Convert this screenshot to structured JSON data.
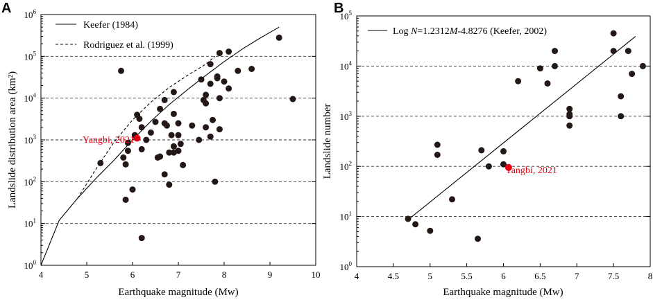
{
  "chart_data": [
    {
      "panel": "A",
      "type": "scatter",
      "xlabel": "Earthquake magnitude (Mw)",
      "ylabel": "Landslide distribution area  (km²)",
      "xlim": [
        4,
        10
      ],
      "xticks": [
        4,
        5,
        6,
        7,
        8,
        9,
        10
      ],
      "ylog": true,
      "ylim_exp": [
        0,
        6
      ],
      "ytick_labels": [
        "10^0",
        "10^1",
        "10^2",
        "10^3",
        "10^4",
        "10^5",
        "10^6"
      ],
      "grid_exps": [
        1,
        2,
        3,
        4,
        5
      ],
      "legend": [
        {
          "label": "Keefer (1984)",
          "style": "solid"
        },
        {
          "label": "Rodriguez et al. (1999)",
          "style": "dashed"
        }
      ],
      "curves": [
        {
          "name": "Keefer (1984)",
          "style": "solid",
          "points": [
            [
              4.0,
              1.0
            ],
            [
              4.4,
              12
            ],
            [
              4.8,
              40
            ],
            [
              5.2,
              120
            ],
            [
              5.6,
              330
            ],
            [
              6.0,
              1000
            ],
            [
              6.4,
              2800
            ],
            [
              6.8,
              7000
            ],
            [
              7.2,
              16000
            ],
            [
              7.6,
              35000
            ],
            [
              8.0,
              75000
            ],
            [
              8.4,
              150000
            ],
            [
              8.8,
              280000
            ],
            [
              9.2,
              500000
            ]
          ]
        },
        {
          "name": "Rodriguez et al. (1999)",
          "style": "dashed",
          "points": [
            [
              4.8,
              40
            ],
            [
              5.2,
              200
            ],
            [
              5.6,
              900
            ],
            [
              6.0,
              3000
            ],
            [
              6.4,
              8000
            ],
            [
              6.8,
              18000
            ],
            [
              7.2,
              35000
            ],
            [
              7.6,
              65000
            ],
            [
              7.8,
              100000
            ]
          ]
        }
      ],
      "series": [
        {
          "name": "Earthquakes",
          "color": "#231815",
          "points": [
            [
              5.3,
              280
            ],
            [
              5.75,
              45000
            ],
            [
              5.8,
              380
            ],
            [
              5.85,
              260
            ],
            [
              5.85,
              37
            ],
            [
              5.9,
              850
            ],
            [
              5.9,
              550
            ],
            [
              6.0,
              65
            ],
            [
              6.05,
              1300
            ],
            [
              6.1,
              4000
            ],
            [
              6.15,
              3200
            ],
            [
              6.2,
              2000
            ],
            [
              6.2,
              600
            ],
            [
              6.2,
              4.5
            ],
            [
              6.3,
              1000
            ],
            [
              6.4,
              1500
            ],
            [
              6.5,
              2700
            ],
            [
              6.55,
              380
            ],
            [
              6.6,
              5500
            ],
            [
              6.6,
              400
            ],
            [
              6.7,
              9000
            ],
            [
              6.7,
              2500
            ],
            [
              6.7,
              150
            ],
            [
              6.75,
              2200
            ],
            [
              6.8,
              85
            ],
            [
              6.8,
              500
            ],
            [
              6.85,
              1300
            ],
            [
              6.9,
              14000
            ],
            [
              6.9,
              4200
            ],
            [
              6.9,
              700
            ],
            [
              6.9,
              500
            ],
            [
              7.0,
              2500
            ],
            [
              7.0,
              1300
            ],
            [
              7.0,
              550
            ],
            [
              7.05,
              800
            ],
            [
              7.1,
              250
            ],
            [
              7.3,
              2200
            ],
            [
              7.45,
              1000
            ],
            [
              7.5,
              28000
            ],
            [
              7.55,
              9000
            ],
            [
              7.6,
              12000
            ],
            [
              7.6,
              7500
            ],
            [
              7.6,
              2000
            ],
            [
              7.7,
              65000
            ],
            [
              7.7,
              22000
            ],
            [
              7.7,
              1200
            ],
            [
              7.75,
              3000
            ],
            [
              7.8,
              100
            ],
            [
              7.85,
              30000
            ],
            [
              7.85,
              33000
            ],
            [
              7.9,
              120000
            ],
            [
              7.9,
              10000
            ],
            [
              7.9,
              1800
            ],
            [
              8.0,
              25000
            ],
            [
              8.1,
              130000
            ],
            [
              8.1,
              17000
            ],
            [
              8.3,
              45000
            ],
            [
              8.6,
              50000
            ],
            [
              9.2,
              280000
            ],
            [
              9.5,
              9500
            ]
          ]
        },
        {
          "name": "Yangbi, 2021",
          "color": "#e60012",
          "points": [
            [
              6.1,
              1100
            ]
          ]
        }
      ],
      "annotations": [
        {
          "text": "Yangbi, 2021",
          "color": "#e60012"
        }
      ]
    },
    {
      "panel": "B",
      "type": "scatter",
      "xlabel": "Earthquake magnitude (Mw)",
      "ylabel": "Landslide number",
      "xlim": [
        4,
        8
      ],
      "xticks": [
        4,
        4.5,
        5,
        5.5,
        6,
        6.5,
        7,
        7.5,
        8
      ],
      "ylog": true,
      "ylim_exp": [
        0,
        5
      ],
      "ytick_labels": [
        "10^0",
        "10^1",
        "10^2",
        "10^3",
        "10^4",
        "10^5"
      ],
      "grid_exps": [
        1,
        2,
        3,
        4,
        5
      ],
      "legend": [
        {
          "label_prefix": "Log ",
          "label_italic": "N",
          "label_suffix": "=1.2312",
          "label_italic2": "M",
          "label_tail": "-4.8276 (Keefer, 2002)",
          "style": "solid"
        }
      ],
      "curves": [
        {
          "name": "Log N=1.2312M-4.8276 (Keefer, 2002)",
          "style": "solid",
          "points": [
            [
              4.7,
              8.6
            ],
            [
              7.8,
              39000
            ]
          ]
        }
      ],
      "series": [
        {
          "name": "Earthquakes",
          "color": "#231815",
          "points": [
            [
              4.7,
              9
            ],
            [
              4.8,
              7
            ],
            [
              5.0,
              5.2
            ],
            [
              5.1,
              170
            ],
            [
              5.1,
              270
            ],
            [
              5.3,
              22
            ],
            [
              5.65,
              3.6
            ],
            [
              5.7,
              210
            ],
            [
              5.8,
              100
            ],
            [
              6.0,
              200
            ],
            [
              6.0,
              110
            ],
            [
              6.2,
              5000
            ],
            [
              6.5,
              9000
            ],
            [
              6.6,
              4500
            ],
            [
              6.7,
              20000
            ],
            [
              6.7,
              10000
            ],
            [
              6.9,
              1400
            ],
            [
              6.9,
              1100
            ],
            [
              6.9,
              1000
            ],
            [
              6.9,
              650
            ],
            [
              7.5,
              45000
            ],
            [
              7.5,
              20000
            ],
            [
              7.6,
              2500
            ],
            [
              7.6,
              1000
            ],
            [
              7.7,
              20000
            ],
            [
              7.75,
              7000
            ],
            [
              7.9,
              10000
            ]
          ]
        },
        {
          "name": "Yangbi, 2021",
          "color": "#e60012",
          "points": [
            [
              6.07,
              95
            ]
          ]
        }
      ],
      "annotations": [
        {
          "text": "Yangbi, 2021",
          "color": "#e60012"
        }
      ]
    }
  ]
}
